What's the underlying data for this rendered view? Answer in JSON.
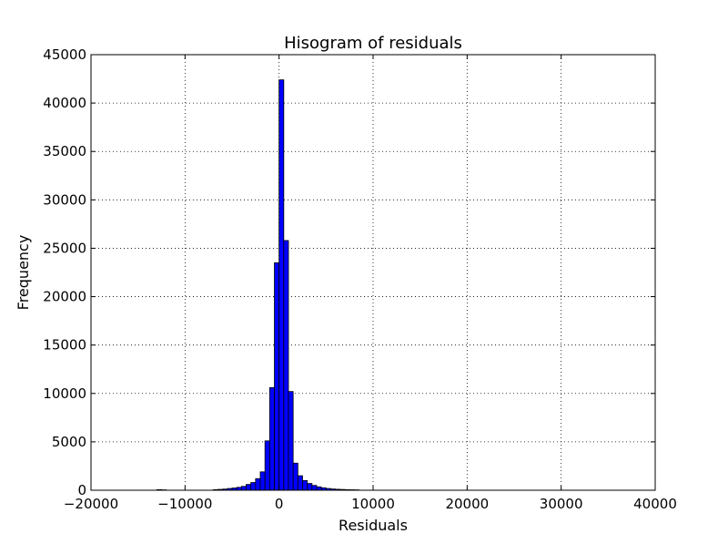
{
  "chart_data": {
    "type": "bar",
    "title": "Hisogram of residuals",
    "xlabel": "Residuals",
    "ylabel": "Frequency",
    "xlim": [
      -20000,
      40000
    ],
    "ylim": [
      0,
      45000
    ],
    "xticks": [
      -20000,
      -10000,
      0,
      10000,
      20000,
      30000,
      40000
    ],
    "yticks": [
      0,
      5000,
      10000,
      15000,
      20000,
      25000,
      30000,
      35000,
      40000,
      45000
    ],
    "xtick_labels": [
      "−20000",
      "−10000",
      "0",
      "10000",
      "20000",
      "30000",
      "40000"
    ],
    "ytick_labels": [
      "0",
      "5000",
      "10000",
      "15000",
      "20000",
      "25000",
      "30000",
      "35000",
      "40000",
      "45000"
    ],
    "grid": true,
    "bar_color": "#0000ff",
    "bin_width": 500,
    "bins": [
      {
        "x0": -13000,
        "count": 60
      },
      {
        "x0": -12500,
        "count": 40
      },
      {
        "x0": -7000,
        "count": 60
      },
      {
        "x0": -6500,
        "count": 90
      },
      {
        "x0": -6000,
        "count": 120
      },
      {
        "x0": -5500,
        "count": 180
      },
      {
        "x0": -5000,
        "count": 230
      },
      {
        "x0": -4500,
        "count": 300
      },
      {
        "x0": -4000,
        "count": 400
      },
      {
        "x0": -3500,
        "count": 600
      },
      {
        "x0": -3000,
        "count": 800
      },
      {
        "x0": -2500,
        "count": 1200
      },
      {
        "x0": -2000,
        "count": 1900
      },
      {
        "x0": -1500,
        "count": 5100
      },
      {
        "x0": -1000,
        "count": 10600
      },
      {
        "x0": -500,
        "count": 23500
      },
      {
        "x0": 0,
        "count": 42400
      },
      {
        "x0": 500,
        "count": 25800
      },
      {
        "x0": 1000,
        "count": 10200
      },
      {
        "x0": 1500,
        "count": 2800
      },
      {
        "x0": 2000,
        "count": 1500
      },
      {
        "x0": 2500,
        "count": 1000
      },
      {
        "x0": 3000,
        "count": 700
      },
      {
        "x0": 3500,
        "count": 500
      },
      {
        "x0": 4000,
        "count": 350
      },
      {
        "x0": 4500,
        "count": 250
      },
      {
        "x0": 5000,
        "count": 180
      },
      {
        "x0": 5500,
        "count": 130
      },
      {
        "x0": 6000,
        "count": 100
      },
      {
        "x0": 6500,
        "count": 80
      },
      {
        "x0": 7000,
        "count": 60
      },
      {
        "x0": 7500,
        "count": 50
      },
      {
        "x0": 8000,
        "count": 40
      }
    ]
  }
}
